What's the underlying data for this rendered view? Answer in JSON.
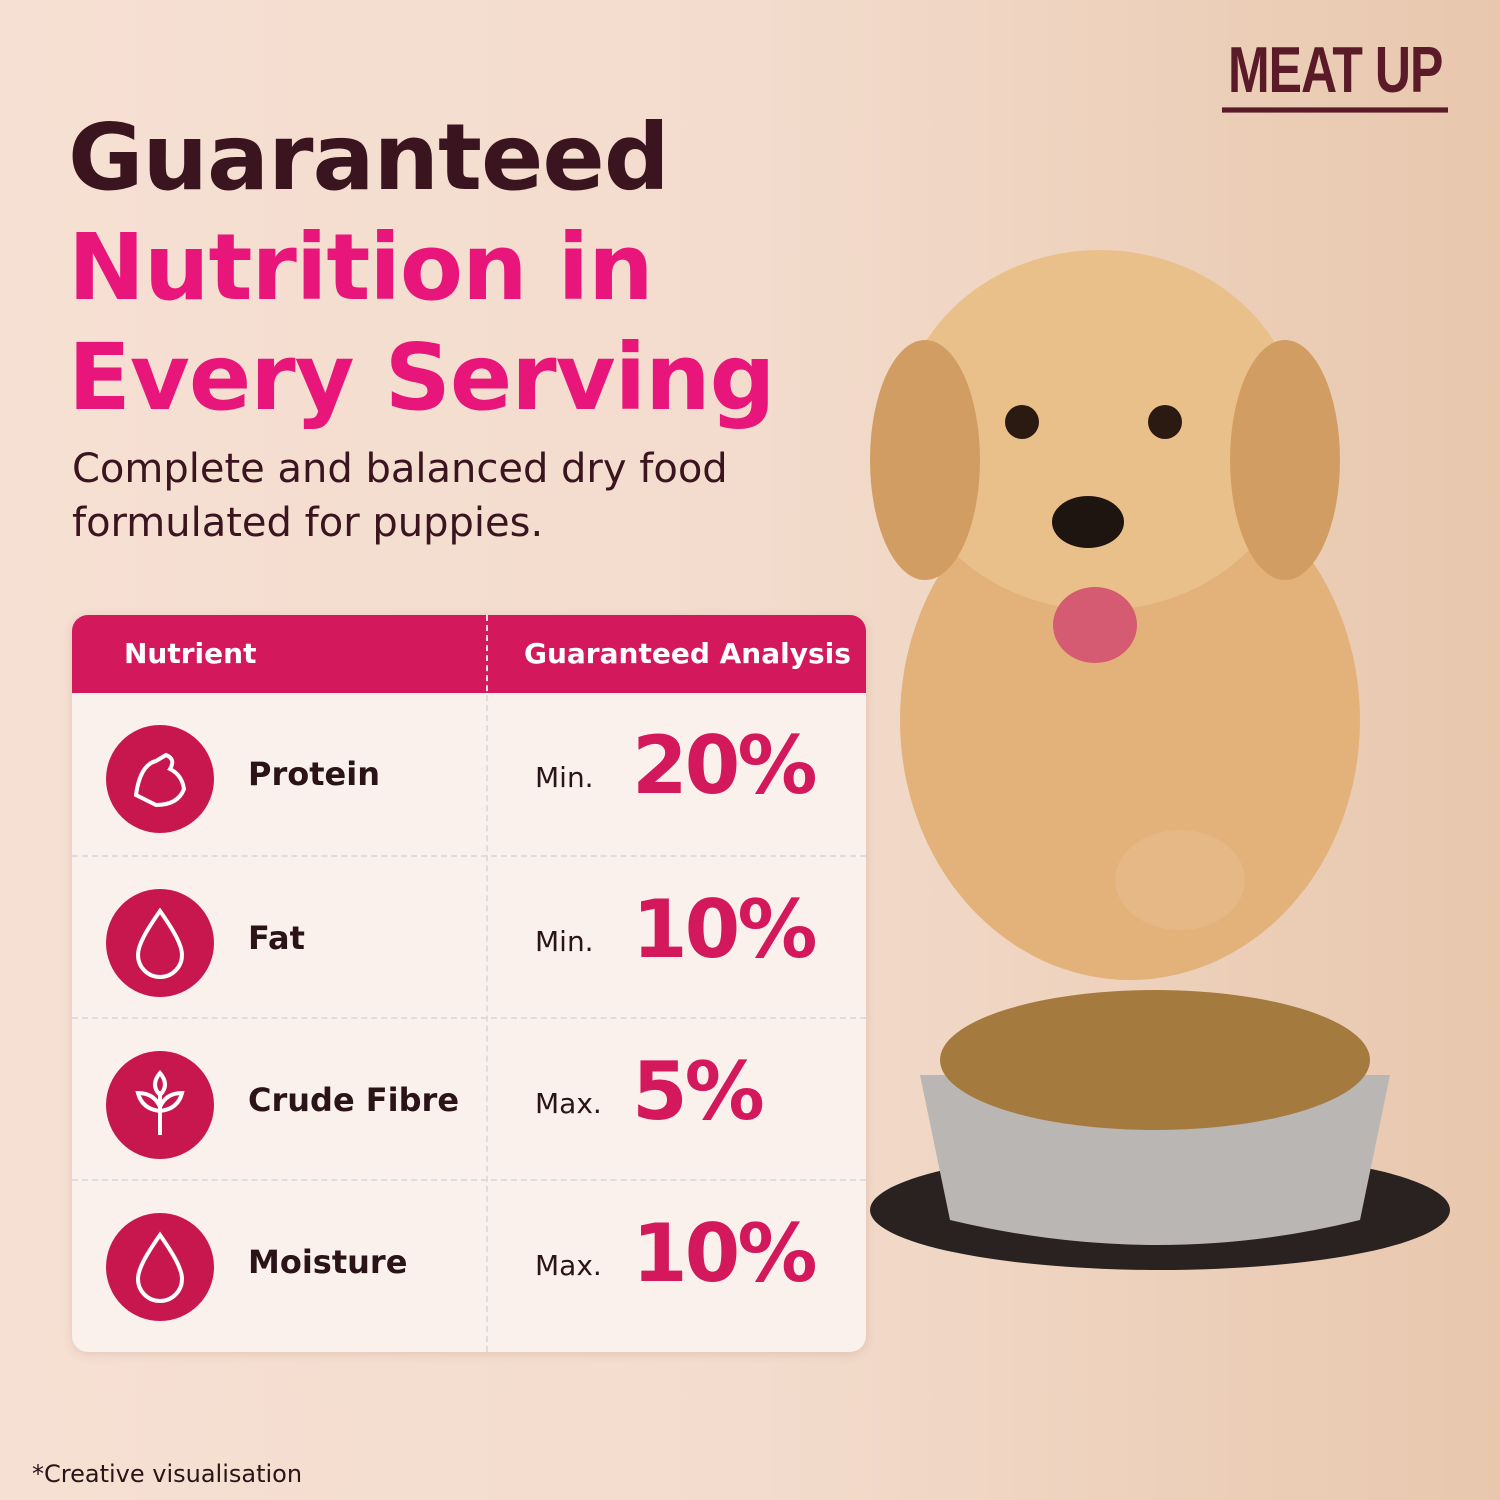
{
  "brand": "MEAT UP",
  "heading": {
    "line1": "Guaranteed",
    "line2": "Nutrition in",
    "line3": "Every Serving"
  },
  "subtitle": {
    "line1": "Complete and balanced dry food",
    "line2": "formulated for puppies."
  },
  "table": {
    "header": [
      "Nutrient",
      "Guaranteed Analysis"
    ],
    "rows": [
      [
        "Protein",
        "Min.",
        "20%"
      ],
      [
        "Fat",
        "Min.",
        "10%"
      ],
      [
        "Crude Fibre",
        "Max.",
        "5%"
      ],
      [
        "Moisture",
        "Max.",
        "10%"
      ]
    ]
  },
  "footnote": "*Creative visualisation"
}
